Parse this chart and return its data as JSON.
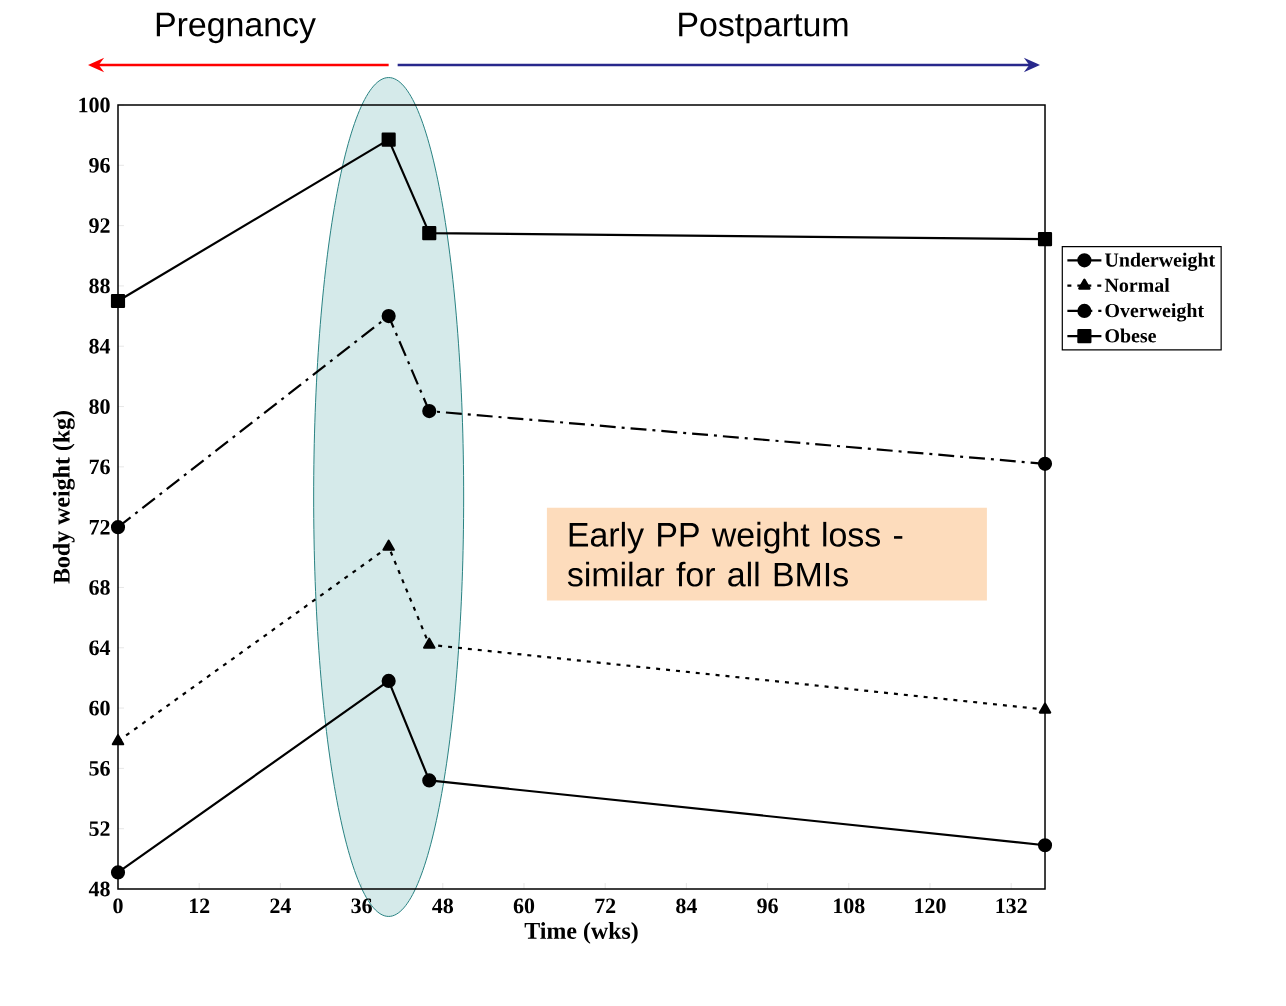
{
  "chart_data": {
    "type": "line",
    "xlabel": "Time (wks)",
    "ylabel": "Body weight (kg)",
    "x": [
      0,
      40,
      46,
      137
    ],
    "series": [
      {
        "name": "Underweight",
        "color": "#000000",
        "values": [
          49.1,
          61.8,
          55.2,
          50.9
        ],
        "marker": "circle",
        "line_style": "solid"
      },
      {
        "name": "Normal",
        "color": "#000000",
        "values": [
          57.8,
          70.7,
          64.2,
          59.9
        ],
        "marker": "triangle",
        "line_style": "dotted"
      },
      {
        "name": "Overweight",
        "color": "#000000",
        "values": [
          72.0,
          86.0,
          79.7,
          76.2
        ],
        "marker": "circle",
        "line_style": "dashed"
      },
      {
        "name": "Obese",
        "color": "#000000",
        "values": [
          87.0,
          97.7,
          91.5,
          91.1
        ],
        "marker": "square",
        "line_style": "solid"
      }
    ],
    "xlim": [
      0,
      137
    ],
    "ylim": [
      48,
      100
    ],
    "xticks": [
      0,
      12,
      24,
      36,
      48,
      60,
      72,
      84,
      96,
      108,
      120,
      132
    ],
    "yticks": [
      48,
      52,
      56,
      60,
      64,
      68,
      72,
      76,
      80,
      84,
      88,
      92,
      96,
      100
    ],
    "grid": false,
    "legend": "right",
    "annotations": [
      "Pregnancy",
      "Postpartum",
      "Early PP weight loss - similar for all BMIs"
    ]
  }
}
